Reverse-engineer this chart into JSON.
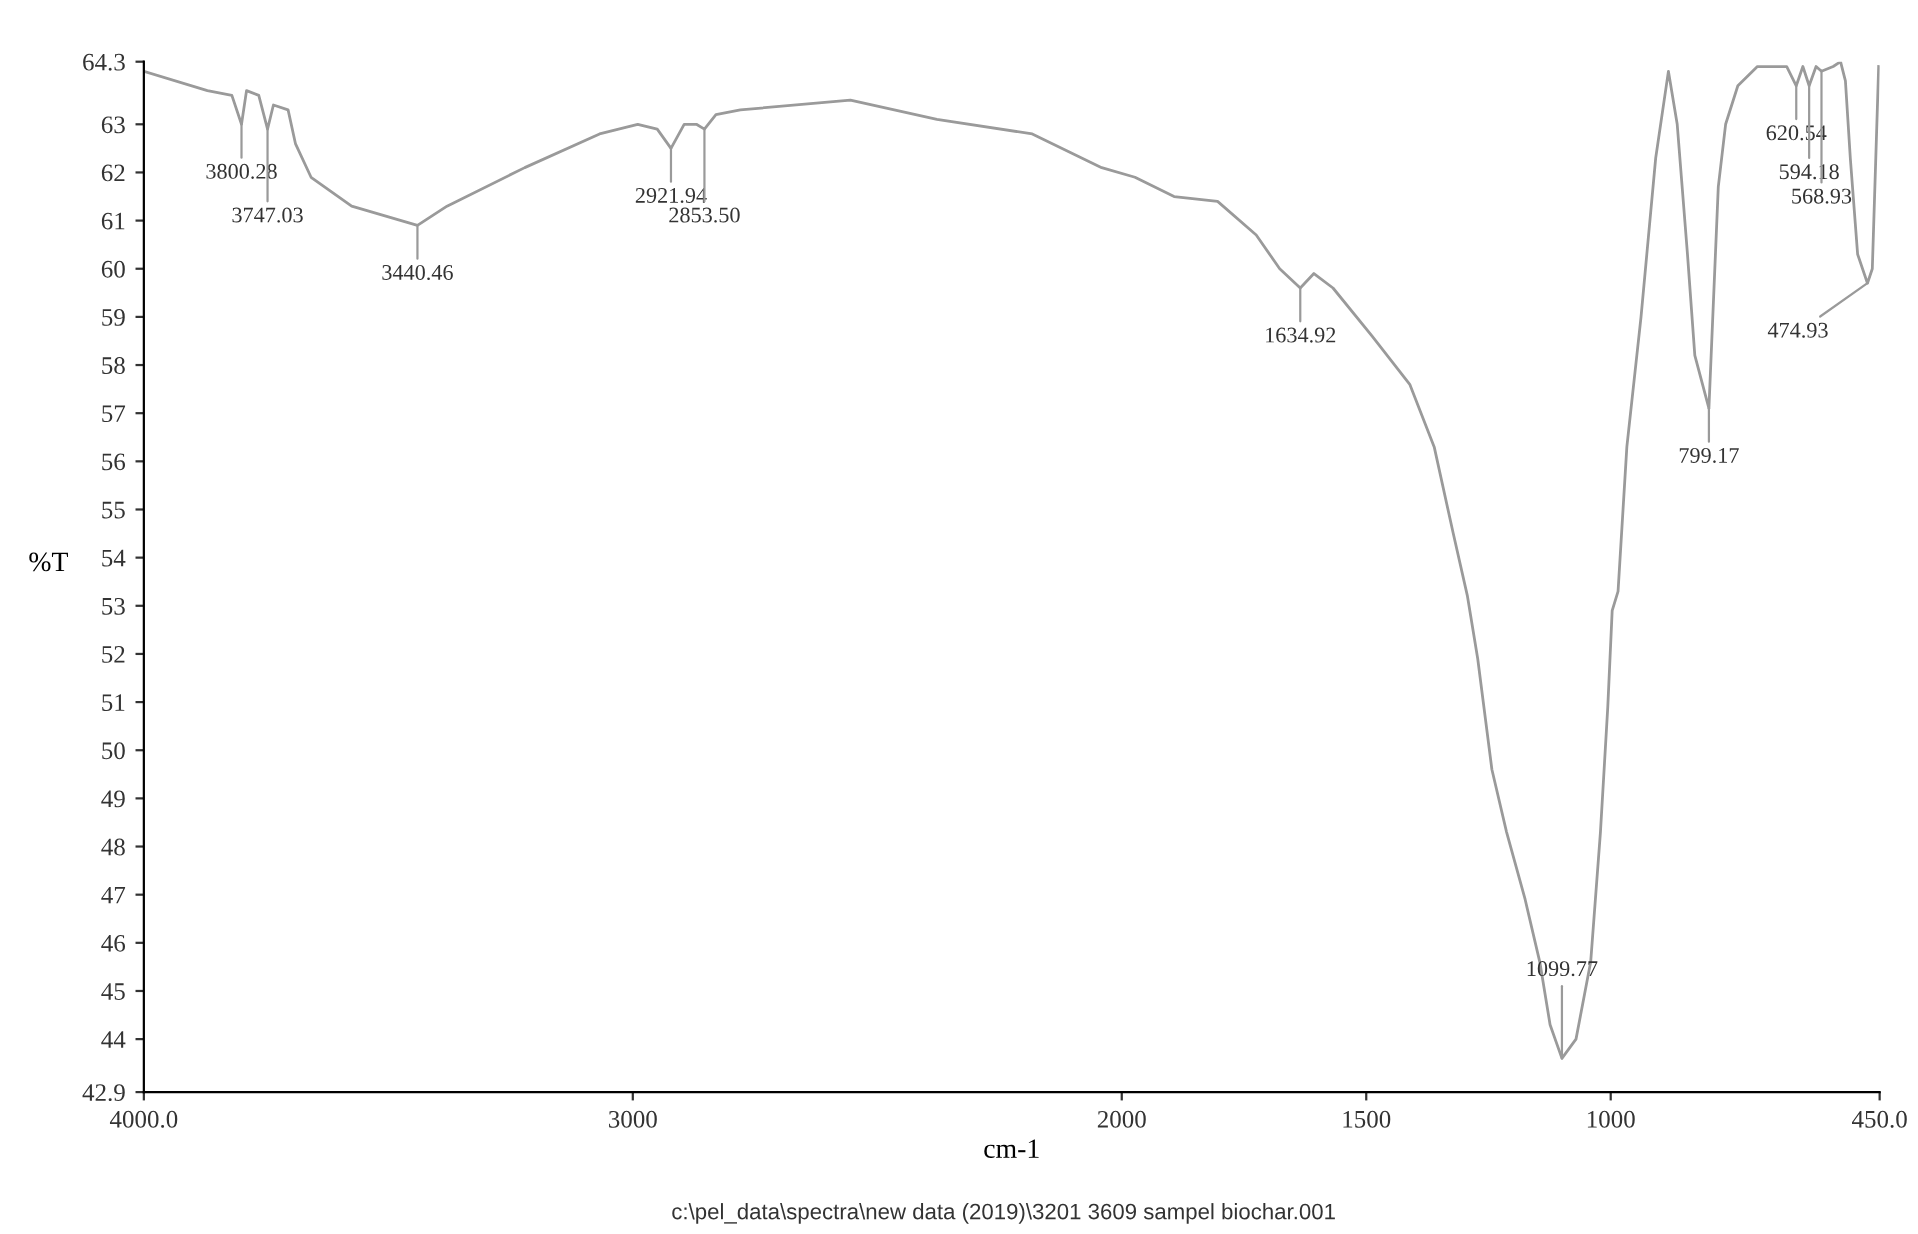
{
  "chart_data": {
    "type": "line",
    "xlabel": "cm-1",
    "ylabel": "%T",
    "series": [
      {
        "color": "#9a9a9a",
        "x": [
          4000,
          3870,
          3820,
          3800.28,
          3790,
          3765,
          3747.03,
          3735,
          3705,
          3690,
          3658,
          3575,
          3440.46,
          3380,
          3221,
          3068,
          2990,
          2950,
          2921.94,
          2895,
          2870,
          2853.5,
          2830,
          2780,
          2555,
          2378,
          2183,
          2041,
          1973,
          1893,
          1804,
          1725,
          1677,
          1634.92,
          1607,
          1568,
          1488,
          1411,
          1361,
          1322,
          1293,
          1272,
          1243,
          1213,
          1175,
          1145,
          1124,
          1099.77,
          1071,
          1041,
          1021,
          1006,
          997,
          985,
          967,
          938,
          908,
          882,
          864,
          843,
          828,
          799.17,
          780,
          765,
          740,
          700,
          640,
          620.54,
          607,
          594.18,
          580,
          568.93,
          545,
          530,
          520,
          510,
          495,
          474.93,
          465,
          452
        ],
        "values": [
          64.1,
          63.7,
          63.6,
          63.0,
          63.7,
          63.6,
          62.9,
          63.4,
          63.3,
          62.6,
          61.9,
          61.3,
          60.9,
          61.3,
          62.1,
          62.8,
          63.0,
          62.9,
          62.5,
          63.0,
          63.0,
          62.9,
          63.2,
          63.3,
          63.5,
          63.1,
          62.8,
          62.1,
          61.9,
          61.5,
          61.4,
          60.7,
          60.0,
          59.6,
          59.9,
          59.6,
          58.6,
          57.6,
          56.3,
          54.5,
          53.2,
          51.9,
          49.6,
          48.3,
          46.9,
          45.6,
          44.3,
          43.6,
          44.0,
          45.6,
          48.3,
          50.9,
          52.9,
          53.3,
          56.3,
          59.0,
          62.3,
          64.1,
          63.0,
          60.3,
          58.2,
          57.1,
          61.7,
          63.0,
          63.8,
          64.2,
          64.2,
          63.8,
          64.2,
          63.8,
          64.2,
          64.1,
          64.2,
          64.3,
          63.9,
          62.3,
          60.3,
          59.7,
          60.0,
          64.2
        ]
      }
    ],
    "xlim": [
      4000,
      450
    ],
    "xticks": [
      {
        "value": 4000,
        "label": "4000.0"
      },
      3000,
      2000,
      1500,
      1000,
      {
        "value": 450,
        "label": "450.0"
      }
    ],
    "ylim": [
      42.9,
      64.3
    ],
    "yticks": [
      42.9,
      44,
      45,
      46,
      47,
      48,
      49,
      50,
      51,
      52,
      53,
      54,
      55,
      56,
      57,
      58,
      59,
      60,
      61,
      62,
      63,
      64.3
    ],
    "grid": false,
    "legend": false,
    "marker": "none",
    "line_style": "solid",
    "annotations": [
      {
        "text": "3800.28",
        "x": 3800.28,
        "y": 63.0
      },
      {
        "text": "3747.03",
        "x": 3747.03,
        "y": 62.9
      },
      {
        "text": "3440.46",
        "x": 3440.46,
        "y": 60.9
      },
      {
        "text": "2921.94",
        "x": 2921.94,
        "y": 62.5
      },
      {
        "text": "2853.50",
        "x": 2853.5,
        "y": 62.9
      },
      {
        "text": "1634.92",
        "x": 1634.92,
        "y": 59.6
      },
      {
        "text": "1099.77",
        "x": 1099.77,
        "y": 43.6
      },
      {
        "text": "799.17",
        "x": 799.17,
        "y": 57.1
      },
      {
        "text": "620.54",
        "x": 620.54,
        "y": 63.8
      },
      {
        "text": "594.18",
        "x": 594.18,
        "y": 63.8
      },
      {
        "text": "568.93",
        "x": 568.93,
        "y": 64.1
      },
      {
        "text": "474.93",
        "x": 474.93,
        "y": 59.7
      },
      "c:\\pel_data\\spectra\\new data (2019)\\3201 3609 sampel biochar.001"
    ]
  }
}
